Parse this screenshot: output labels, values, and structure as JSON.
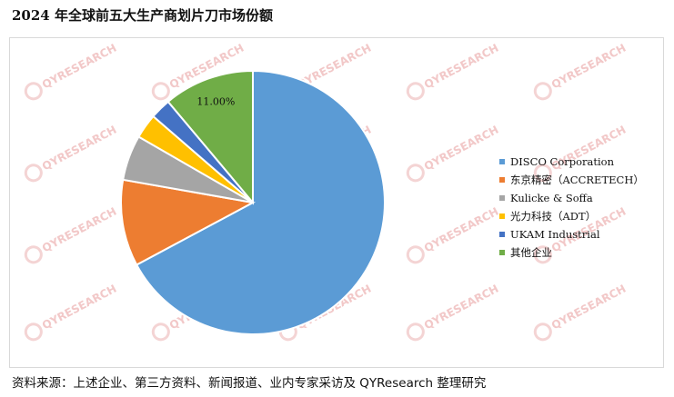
{
  "title": "2024 年全球前五大生产商划片刀市场份额",
  "footer": "资料来源：上述企业、第三方资料、新闻报道、业内专家采访及 QYResearch 整理研究",
  "watermark_text": "QYRESEARCH",
  "chart_data": {
    "type": "pie",
    "start_angle_deg": 0,
    "direction": "clockwise",
    "legend_position": "right",
    "slices": [
      {
        "label": "DISCO Corporation",
        "value": 66.5,
        "color": "#5b9bd5"
      },
      {
        "label": "东京精密（ACCRETECH）",
        "value": 10.5,
        "color": "#ed7d31"
      },
      {
        "label": "Kulicke & Soffa",
        "value": 5.5,
        "color": "#a5a5a5"
      },
      {
        "label": "光力科技（ADT）",
        "value": 3.0,
        "color": "#ffc000"
      },
      {
        "label": "UKAM Industrial",
        "value": 2.5,
        "color": "#4472c4"
      },
      {
        "label": "其他企业",
        "value": 11.0,
        "color": "#70ad47"
      }
    ],
    "data_labels": [
      {
        "slice": 5,
        "text": "11.00%"
      }
    ]
  }
}
